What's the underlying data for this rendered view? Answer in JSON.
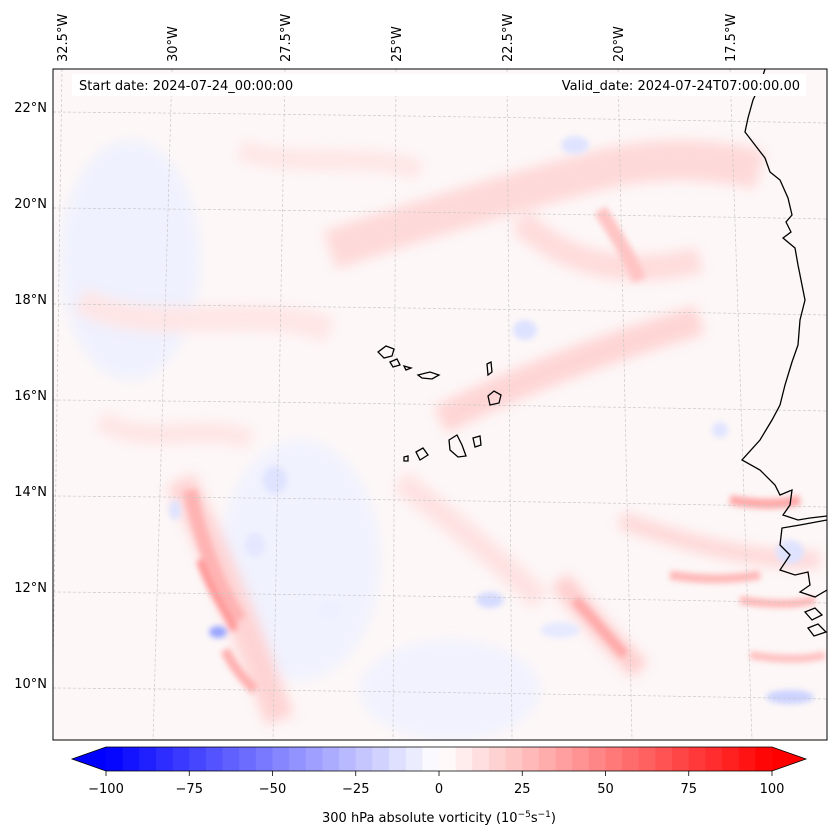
{
  "map": {
    "start_date_label": "Start date: 2024-07-24_00:00:00",
    "valid_date_label": "Valid_date: 2024-07-24T07:00:00.00",
    "lon_labels": [
      "32.5°W",
      "30°W",
      "27.5°W",
      "25°W",
      "22.5°W",
      "20°W",
      "17.5°W"
    ],
    "lat_labels": [
      "22°N",
      "20°N",
      "18°N",
      "16°N",
      "14°N",
      "12°N",
      "10°N"
    ],
    "colorbar": {
      "ticks": [
        "−100",
        "−75",
        "−50",
        "−25",
        "0",
        "25",
        "50",
        "75",
        "100"
      ],
      "label_prefix": "300 hPa absolute vorticity (10",
      "label_exp1": "−5",
      "label_mid": "s",
      "label_exp2": "−1",
      "label_suffix": ")",
      "min": -100,
      "max": 100,
      "levels": 40,
      "low_color": "#0000ff",
      "high_color": "#ff0000"
    },
    "colors": {
      "coastline": "#000000",
      "gridline": "#c8c8c8",
      "frame": "#000000"
    }
  }
}
